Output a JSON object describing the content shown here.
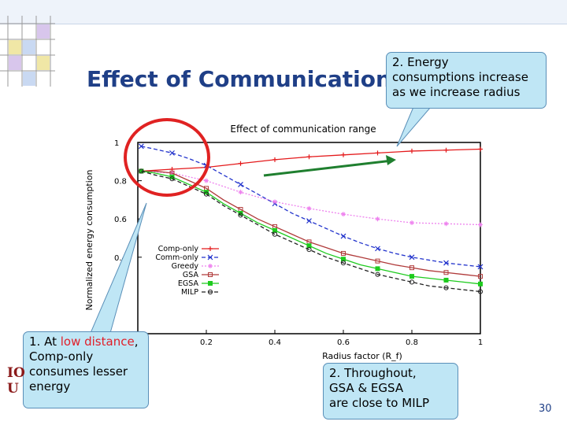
{
  "slide": {
    "title": "Effect of Communication",
    "page_number": "30",
    "logo_text": "IO\nU"
  },
  "callouts": {
    "energy": "2. Energy\nconsumptions increase\nas we increase radius",
    "low_distance_prefix": "1. At ",
    "low_distance_highlight": "low distance",
    "low_distance_suffix": ",",
    "low_distance_rest": "Comp-only consumes lesser energy",
    "throughput": "2. Throughout,\nGSA & EGSA\nare close to MILP"
  },
  "chart_data": {
    "type": "line",
    "title": "Effect of communication range",
    "xlabel": "Radius factor (R_f)",
    "ylabel": "Normalized energy consumption",
    "xlim": [
      0,
      1
    ],
    "ylim": [
      0,
      1
    ],
    "xticks": [
      0.2,
      0.4,
      0.6,
      0.8,
      1
    ],
    "xtick_labels": [
      "0.2",
      "0.4",
      "0.6",
      "0.8",
      "1"
    ],
    "yticks": [
      0.4,
      0.6,
      0.8,
      1
    ],
    "ytick_labels": [
      "0.4",
      "0.6",
      "0.8",
      "1"
    ],
    "legend_position": "bottom-left",
    "series": [
      {
        "name": "Comp-only",
        "color": "#e41a1c",
        "marker": "plus",
        "dash": "solid",
        "x": [
          0.01,
          0.1,
          0.2,
          0.3,
          0.4,
          0.5,
          0.6,
          0.7,
          0.8,
          0.9,
          1.0
        ],
        "y": [
          0.85,
          0.86,
          0.87,
          0.89,
          0.91,
          0.925,
          0.935,
          0.945,
          0.955,
          0.96,
          0.965
        ]
      },
      {
        "name": "Comm-only",
        "color": "#2233cc",
        "marker": "x",
        "dash": "dashed",
        "x": [
          0.01,
          0.05,
          0.1,
          0.15,
          0.2,
          0.25,
          0.3,
          0.35,
          0.4,
          0.45,
          0.5,
          0.55,
          0.6,
          0.65,
          0.7,
          0.75,
          0.8,
          0.85,
          0.9,
          0.95,
          1.0
        ],
        "y": [
          0.98,
          0.965,
          0.945,
          0.915,
          0.88,
          0.83,
          0.78,
          0.73,
          0.68,
          0.63,
          0.59,
          0.55,
          0.51,
          0.475,
          0.445,
          0.42,
          0.4,
          0.385,
          0.37,
          0.36,
          0.35
        ]
      },
      {
        "name": "Greedy",
        "color": "#ee82ee",
        "marker": "star",
        "dash": "dotted",
        "x": [
          0.01,
          0.1,
          0.2,
          0.3,
          0.4,
          0.5,
          0.6,
          0.7,
          0.8,
          0.9,
          1.0
        ],
        "y": [
          0.85,
          0.84,
          0.8,
          0.74,
          0.69,
          0.655,
          0.625,
          0.6,
          0.58,
          0.575,
          0.57
        ]
      },
      {
        "name": "GSA",
        "color": "#b03a3a",
        "marker": "square",
        "dash": "solid",
        "x": [
          0.01,
          0.05,
          0.1,
          0.15,
          0.2,
          0.25,
          0.3,
          0.35,
          0.4,
          0.45,
          0.5,
          0.55,
          0.6,
          0.65,
          0.7,
          0.75,
          0.8,
          0.85,
          0.9,
          0.95,
          1.0
        ],
        "y": [
          0.85,
          0.85,
          0.84,
          0.8,
          0.76,
          0.7,
          0.65,
          0.6,
          0.56,
          0.52,
          0.48,
          0.45,
          0.42,
          0.4,
          0.38,
          0.36,
          0.345,
          0.33,
          0.32,
          0.31,
          0.3
        ]
      },
      {
        "name": "EGSA",
        "color": "#1ecb1e",
        "marker": "filled-square",
        "dash": "solid",
        "x": [
          0.01,
          0.05,
          0.1,
          0.15,
          0.2,
          0.25,
          0.3,
          0.35,
          0.4,
          0.45,
          0.5,
          0.55,
          0.6,
          0.65,
          0.7,
          0.75,
          0.8,
          0.85,
          0.9,
          0.95,
          1.0
        ],
        "y": [
          0.85,
          0.84,
          0.82,
          0.78,
          0.74,
          0.68,
          0.63,
          0.58,
          0.54,
          0.5,
          0.46,
          0.42,
          0.39,
          0.36,
          0.34,
          0.32,
          0.3,
          0.29,
          0.28,
          0.27,
          0.26
        ]
      },
      {
        "name": "MILP",
        "color": "#222222",
        "marker": "circle",
        "dash": "dashed",
        "x": [
          0.01,
          0.05,
          0.1,
          0.15,
          0.2,
          0.25,
          0.3,
          0.35,
          0.4,
          0.45,
          0.5,
          0.55,
          0.6,
          0.65,
          0.7,
          0.75,
          0.8,
          0.85,
          0.9,
          0.95,
          1.0
        ],
        "y": [
          0.85,
          0.83,
          0.81,
          0.77,
          0.73,
          0.67,
          0.62,
          0.57,
          0.52,
          0.48,
          0.44,
          0.4,
          0.37,
          0.34,
          0.31,
          0.29,
          0.27,
          0.25,
          0.24,
          0.23,
          0.22
        ]
      }
    ]
  }
}
